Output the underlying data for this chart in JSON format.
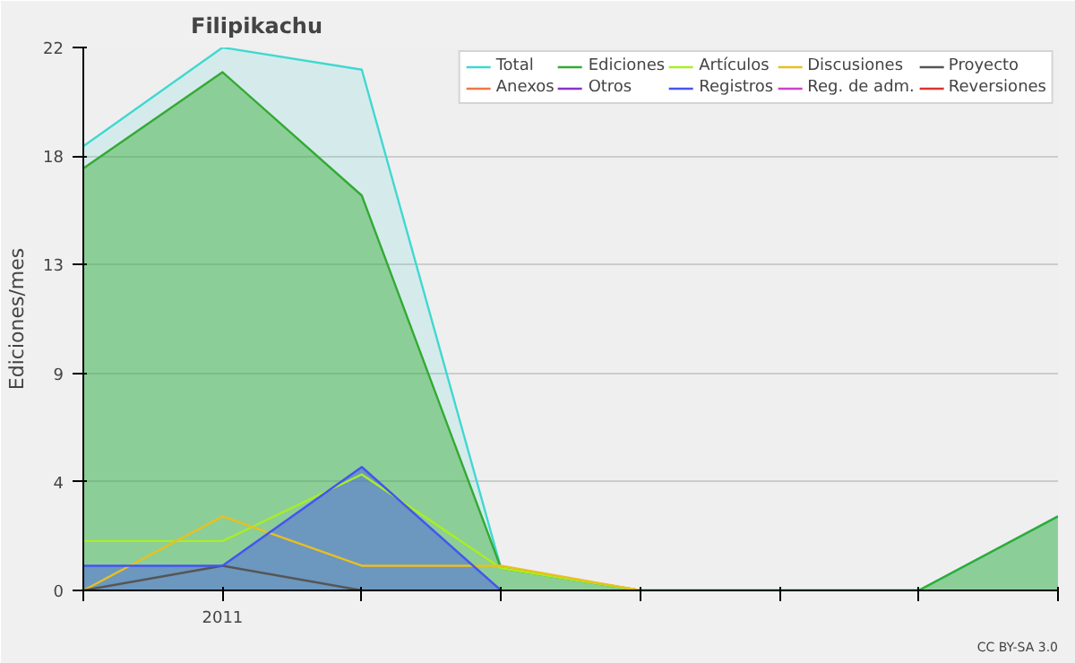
{
  "chart_data": {
    "type": "line",
    "title": "Filipikachu",
    "ylabel": "Ediciones/mes",
    "categories": [
      null,
      "2011",
      null,
      null,
      null,
      null,
      null,
      null
    ],
    "series": [
      {
        "name": "Total",
        "type": "area",
        "color": "#40d8d0",
        "values": [
          18.0,
          22,
          21.1,
          0.9,
          0,
          0,
          0,
          3.0
        ]
      },
      {
        "name": "Ediciones",
        "type": "area",
        "color": "#33aa33",
        "values": [
          17.1,
          21,
          16.0,
          0.9,
          0,
          0,
          0,
          3.0
        ]
      },
      {
        "name": "Artículos",
        "color": "#aaee22",
        "values": [
          2.0,
          2.0,
          4.7,
          0.9,
          0,
          null,
          null,
          null
        ]
      },
      {
        "name": "Discusiones",
        "color": "#e8c020",
        "values": [
          0,
          3.0,
          1.0,
          1.0,
          0,
          null,
          null,
          null
        ]
      },
      {
        "name": "Proyecto",
        "color": "#555555",
        "values": [
          0,
          1.0,
          0,
          null,
          null,
          null,
          null,
          null
        ]
      },
      {
        "name": "Anexos",
        "color": "#ee7744",
        "values": [
          null,
          null,
          null,
          null,
          null,
          null,
          null,
          null
        ]
      },
      {
        "name": "Otros",
        "color": "#8833cc",
        "values": [
          null,
          null,
          null,
          null,
          null,
          null,
          null,
          null
        ]
      },
      {
        "name": "Registros",
        "type": "area",
        "color": "#4455ee",
        "values": [
          1.0,
          1.0,
          5.0,
          0,
          null,
          null,
          null,
          null
        ]
      },
      {
        "name": "Reg. de adm.",
        "color": "#cc44cc",
        "values": [
          null,
          null,
          null,
          null,
          null,
          null,
          null,
          null
        ]
      },
      {
        "name": "Reversiones",
        "color": "#dd3333",
        "values": [
          null,
          null,
          null,
          null,
          null,
          null,
          null,
          null
        ]
      }
    ],
    "ylim": [
      0,
      22
    ],
    "yticks": [
      0,
      {
        "value": 4.4,
        "label": "4"
      },
      {
        "value": 8.8,
        "label": "9"
      },
      {
        "value": 13.2,
        "label": "13"
      },
      {
        "value": 17.6,
        "label": "18"
      },
      22
    ],
    "grid": "y",
    "legend": "top right",
    "annotations": [
      "CC BY-SA 3.0"
    ]
  }
}
